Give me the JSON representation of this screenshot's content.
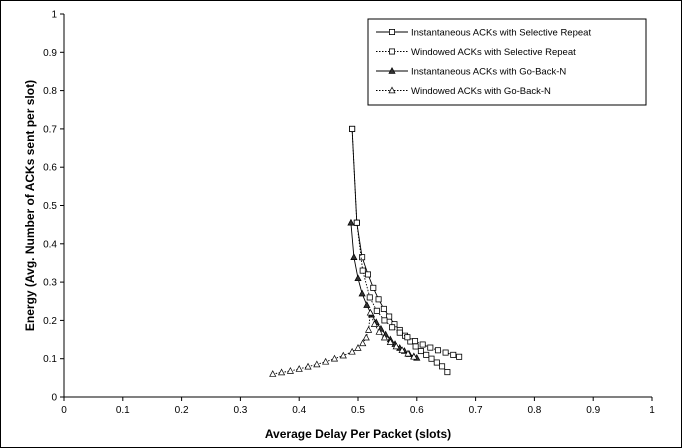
{
  "chart_data": {
    "type": "line",
    "xlabel": "Average Delay Per Packet (slots)",
    "ylabel": "Energy (Avg. Number of ACKs sent per slot)",
    "xlim": [
      0,
      1
    ],
    "ylim": [
      0,
      1
    ],
    "xticks": [
      "0",
      "0.1",
      "0.2",
      "0.3",
      "0.4",
      "0.5",
      "0.6",
      "0.7",
      "0.8",
      "0.9",
      "1"
    ],
    "yticks": [
      "0",
      "0.1",
      "0.2",
      "0.3",
      "0.4",
      "0.5",
      "0.6",
      "0.7",
      "0.8",
      "0.9",
      "1"
    ],
    "grid": false,
    "legend_position": "top-right",
    "series": [
      {
        "name": "Instantaneous ACKs with Selective Repeat",
        "line": "solid",
        "marker": "square",
        "x": [
          0.49,
          0.498,
          0.507,
          0.517,
          0.526,
          0.535,
          0.544,
          0.553,
          0.562,
          0.571,
          0.58,
          0.589,
          0.598,
          0.607,
          0.616,
          0.625,
          0.634,
          0.643,
          0.652
        ],
        "y": [
          0.7,
          0.455,
          0.365,
          0.32,
          0.285,
          0.255,
          0.23,
          0.21,
          0.19,
          0.175,
          0.16,
          0.145,
          0.132,
          0.12,
          0.11,
          0.1,
          0.09,
          0.08,
          0.065
        ]
      },
      {
        "name": "Windowed ACKs with Selective Repeat",
        "line": "dotted",
        "marker": "square",
        "x": [
          0.49,
          0.498,
          0.508,
          0.52,
          0.532,
          0.545,
          0.558,
          0.571,
          0.584,
          0.597,
          0.61,
          0.623,
          0.636,
          0.649,
          0.662,
          0.672
        ],
        "y": [
          0.7,
          0.455,
          0.33,
          0.26,
          0.225,
          0.2,
          0.182,
          0.168,
          0.156,
          0.146,
          0.137,
          0.129,
          0.122,
          0.116,
          0.11,
          0.105
        ]
      },
      {
        "name": "Instantaneous ACKs with Go-Back-N",
        "line": "solid",
        "marker": "triangle",
        "x": [
          0.488,
          0.493,
          0.5,
          0.507,
          0.515,
          0.523,
          0.531,
          0.539,
          0.547,
          0.555,
          0.563,
          0.571,
          0.579,
          0.587,
          0.595,
          0.6
        ],
        "y": [
          0.455,
          0.365,
          0.31,
          0.27,
          0.24,
          0.215,
          0.195,
          0.178,
          0.163,
          0.15,
          0.138,
          0.128,
          0.12,
          0.112,
          0.106,
          0.102
        ]
      },
      {
        "name": "Windowed ACKs with Go-Back-N",
        "line": "dotted",
        "marker": "triangle",
        "x": [
          0.355,
          0.37,
          0.385,
          0.4,
          0.415,
          0.43,
          0.445,
          0.46,
          0.475,
          0.49,
          0.5,
          0.508,
          0.514,
          0.518,
          0.521,
          0.528,
          0.536,
          0.545,
          0.555,
          0.565,
          0.575,
          0.585,
          0.595
        ],
        "y": [
          0.06,
          0.064,
          0.068,
          0.073,
          0.079,
          0.085,
          0.092,
          0.1,
          0.108,
          0.118,
          0.128,
          0.14,
          0.155,
          0.175,
          0.22,
          0.19,
          0.17,
          0.155,
          0.143,
          0.132,
          0.122,
          0.113,
          0.105
        ]
      }
    ]
  }
}
